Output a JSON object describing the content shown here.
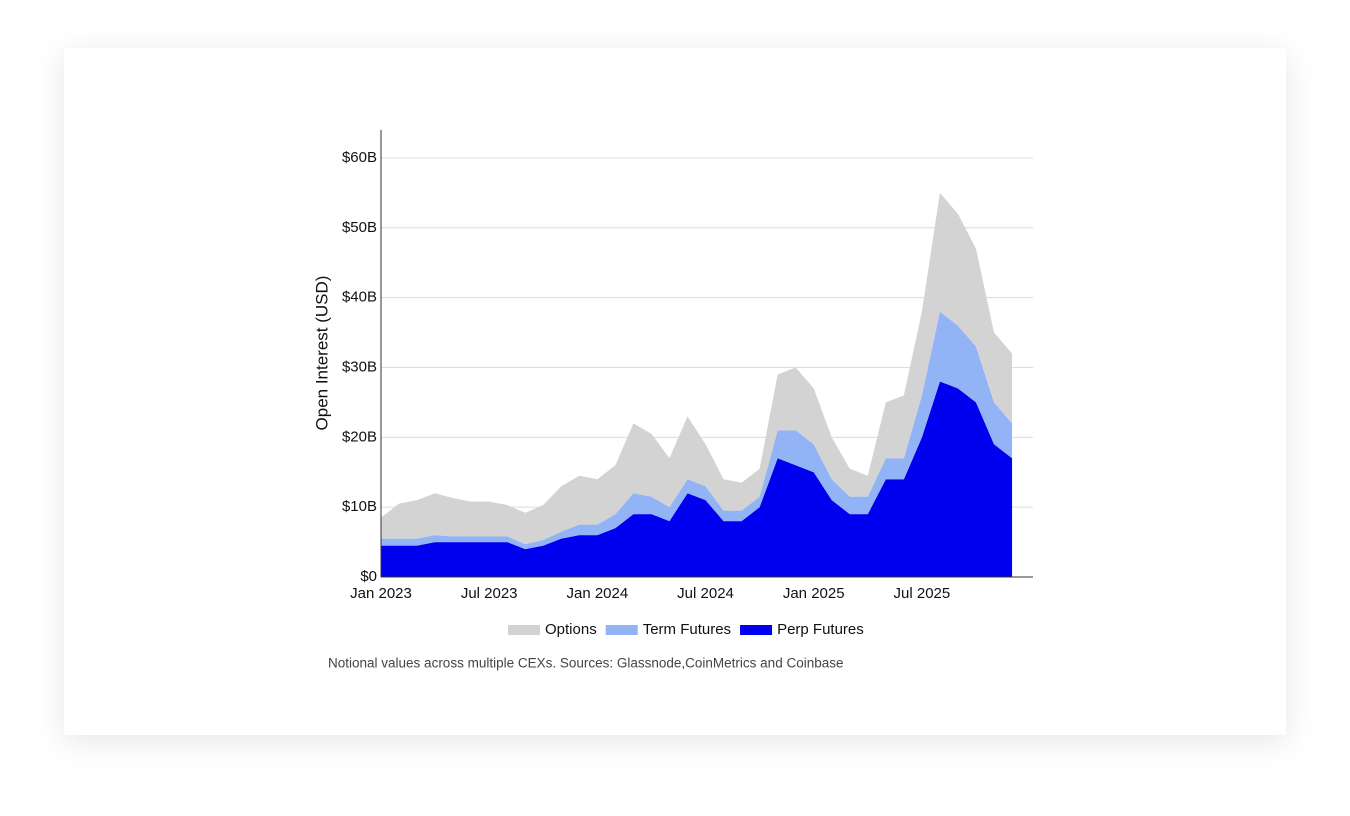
{
  "chart_data": {
    "type": "stacked_area",
    "y_label": "Open Interest (USD)",
    "caption": "Notional values across multiple CEXs. Sources: Glassnode,CoinMetrics and Coinbase",
    "x": [
      "Jan 2023",
      "Feb 2023",
      "Mar 2023",
      "Apr 2023",
      "May 2023",
      "Jun 2023",
      "Jul 2023",
      "Aug 2023",
      "Sep 2023",
      "Oct 2023",
      "Nov 2023",
      "Dec 2023",
      "Jan 2024",
      "Feb 2024",
      "Mar 2024",
      "Apr 2024",
      "May 2024",
      "Jun 2024",
      "Jul 2024",
      "Aug 2024",
      "Sep 2024",
      "Oct 2024",
      "Nov 2024",
      "Dec 2024",
      "Jan 2025",
      "Feb 2025",
      "Mar 2025",
      "Apr 2025",
      "May 2025",
      "Jun 2025",
      "Jul 2025",
      "Aug 2025",
      "Sep 2025",
      "Oct 2025",
      "Nov 2025",
      "Dec 2025"
    ],
    "xticks": [
      "Jan 2023",
      "Jul 2023",
      "Jan 2024",
      "Jul 2024",
      "Jan 2025",
      "Jul 2025"
    ],
    "series": [
      {
        "name": "Options",
        "color": "#d3d3d3",
        "values": [
          3000000000.0,
          5000000000.0,
          5500000000.0,
          6000000000.0,
          5500000000.0,
          5000000000.0,
          5000000000.0,
          4500000000.0,
          4500000000.0,
          5000000000.0,
          6500000000.0,
          7000000000.0,
          6500000000.0,
          7000000000.0,
          10000000000.0,
          9000000000.0,
          7000000000.0,
          9000000000.0,
          6000000000.0,
          4500000000.0,
          4000000000.0,
          4000000000.0,
          8000000000.0,
          9000000000.0,
          8000000000.0,
          6000000000.0,
          4000000000.0,
          3000000000.0,
          8000000000.0,
          9000000000.0,
          12000000000.0,
          17000000000.0,
          16000000000.0,
          14000000000.0,
          10000000000.0,
          10000000000.0
        ]
      },
      {
        "name": "Term Futures",
        "color": "#92b4f6",
        "values": [
          1000000000.0,
          1000000000.0,
          1000000000.0,
          1000000000.0,
          800000000.0,
          800000000.0,
          800000000.0,
          800000000.0,
          700000000.0,
          800000000.0,
          1000000000.0,
          1500000000.0,
          1500000000.0,
          2000000000.0,
          3000000000.0,
          2500000000.0,
          2000000000.0,
          2000000000.0,
          2000000000.0,
          1500000000.0,
          1500000000.0,
          1500000000.0,
          4000000000.0,
          5000000000.0,
          4000000000.0,
          3000000000.0,
          2500000000.0,
          2500000000.0,
          3000000000.0,
          3000000000.0,
          6000000000.0,
          10000000000.0,
          9000000000.0,
          8000000000.0,
          6000000000.0,
          5000000000.0
        ]
      },
      {
        "name": "Perp Futures",
        "color": "#0000ee",
        "values": [
          4500000000.0,
          4500000000.0,
          4500000000.0,
          5000000000.0,
          5000000000.0,
          5000000000.0,
          5000000000.0,
          5000000000.0,
          4000000000.0,
          4500000000.0,
          5500000000.0,
          6000000000.0,
          6000000000.0,
          7000000000.0,
          9000000000.0,
          9000000000.0,
          8000000000.0,
          12000000000.0,
          11000000000.0,
          8000000000.0,
          8000000000.0,
          10000000000.0,
          17000000000.0,
          16000000000.0,
          15000000000.0,
          11000000000.0,
          9000000000.0,
          9000000000.0,
          14000000000.0,
          14000000000.0,
          20000000000.0,
          28000000000.0,
          27000000000.0,
          25000000000.0,
          19000000000.0,
          17000000000.0
        ]
      }
    ],
    "ylim": [
      0,
      64000000000
    ],
    "yticks": [
      {
        "value": 0,
        "label": "$0"
      },
      {
        "value": 10000000000,
        "label": "$10B"
      },
      {
        "value": 20000000000,
        "label": "$20B"
      },
      {
        "value": 30000000000,
        "label": "$30B"
      },
      {
        "value": 40000000000,
        "label": "$40B"
      },
      {
        "value": 50000000000,
        "label": "$50B"
      },
      {
        "value": 60000000000,
        "label": "$60B"
      }
    ],
    "grid": true
  }
}
